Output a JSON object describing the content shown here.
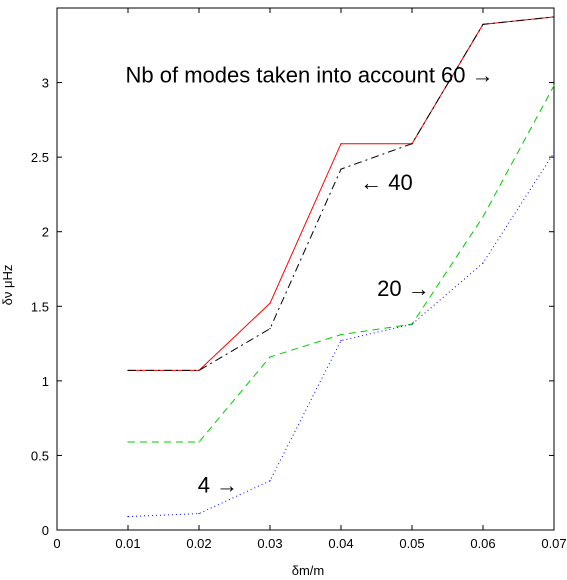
{
  "chart_data": {
    "type": "line",
    "title": "",
    "xlabel": "δm/m",
    "ylabel": "δν μHz",
    "xlim": [
      0,
      0.07
    ],
    "ylim": [
      0,
      3.5
    ],
    "grid": false,
    "x": [
      0.01,
      0.02,
      0.03,
      0.04,
      0.05,
      0.06,
      0.07
    ],
    "x_ticks": [
      "0",
      "0.01",
      "0.02",
      "0.03",
      "0.04",
      "0.05",
      "0.06",
      "0.07"
    ],
    "y_ticks": [
      "0",
      "0.5",
      "1",
      "1.5",
      "2",
      "2.5",
      "3"
    ],
    "series": [
      {
        "color": "#ff0000",
        "dash": "solid",
        "values": [
          1.07,
          1.07,
          1.52,
          2.59,
          2.59,
          3.39,
          3.44
        ]
      },
      {
        "color": "#000000",
        "dash": "dashdot",
        "values": [
          1.07,
          1.07,
          1.35,
          2.42,
          2.59,
          3.39,
          3.44
        ]
      },
      {
        "color": "#00cc00",
        "dash": "dashed",
        "values": [
          0.59,
          0.59,
          1.16,
          1.31,
          1.38,
          2.1,
          2.98
        ]
      },
      {
        "color": "#0000ff",
        "dash": "dotted",
        "values": [
          0.09,
          0.11,
          0.33,
          1.27,
          1.38,
          1.79,
          2.53
        ]
      }
    ],
    "annotations": [
      {
        "text": "Nb of modes taken into account 60 →",
        "x": 0.0615,
        "y": 3.0,
        "anchor": "end"
      },
      {
        "text": "← 40",
        "x": 0.0427,
        "y": 2.28,
        "anchor": "start"
      },
      {
        "text": "20 →",
        "x": 0.0525,
        "y": 1.57,
        "anchor": "end"
      },
      {
        "text": "4 →",
        "x": 0.0255,
        "y": 0.25,
        "anchor": "end"
      }
    ]
  }
}
